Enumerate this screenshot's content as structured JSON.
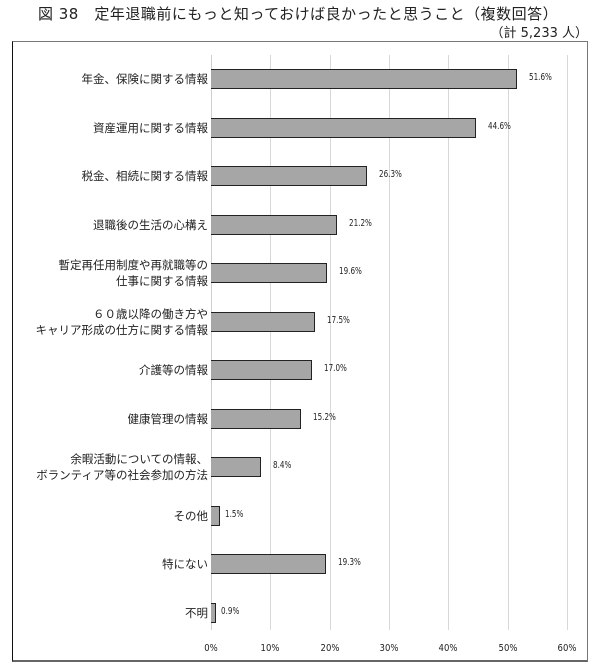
{
  "header": {
    "title": "図 38　定年退職前にもっと知っておけば良かったと思うこと（複数回答）",
    "subtitle": "（計 5,233 人）"
  },
  "chart_data": {
    "type": "bar",
    "orientation": "horizontal",
    "title": "図 38　定年退職前にもっと知っておけば良かったと思うこと（複数回答）",
    "subtitle": "（計 5,233 人）",
    "xlabel": "",
    "ylabel": "",
    "xlim": [
      0,
      60
    ],
    "grid": true,
    "legend": null,
    "x_ticks": [
      "0%",
      "10%",
      "20%",
      "30%",
      "40%",
      "50%",
      "60%"
    ],
    "categories": [
      [
        "年金、保険に関する情報"
      ],
      [
        "資産運用に関する情報"
      ],
      [
        "税金、相続に関する情報"
      ],
      [
        "退職後の生活の心構え"
      ],
      [
        "暫定再任用制度や再就職等の",
        "仕事に関する情報"
      ],
      [
        "６０歳以降の働き方や",
        "キャリア形成の仕方に関する情報"
      ],
      [
        "介護等の情報"
      ],
      [
        "健康管理の情報"
      ],
      [
        "余暇活動についての情報、",
        "ボランティア等の社会参加の方法"
      ],
      [
        "その他"
      ],
      [
        "特にない"
      ],
      [
        "不明"
      ]
    ],
    "values": [
      51.6,
      44.6,
      26.3,
      21.2,
      19.6,
      17.5,
      17.0,
      15.2,
      8.4,
      1.5,
      19.3,
      0.9
    ],
    "value_labels": [
      "51.6%",
      "44.6%",
      "26.3%",
      "21.2%",
      "19.6%",
      "17.5%",
      "17.0%",
      "15.2%",
      "8.4%",
      "1.5%",
      "19.3%",
      "0.9%"
    ],
    "bar_color": "#a6a6a6",
    "bar_border_color": "#222222"
  }
}
